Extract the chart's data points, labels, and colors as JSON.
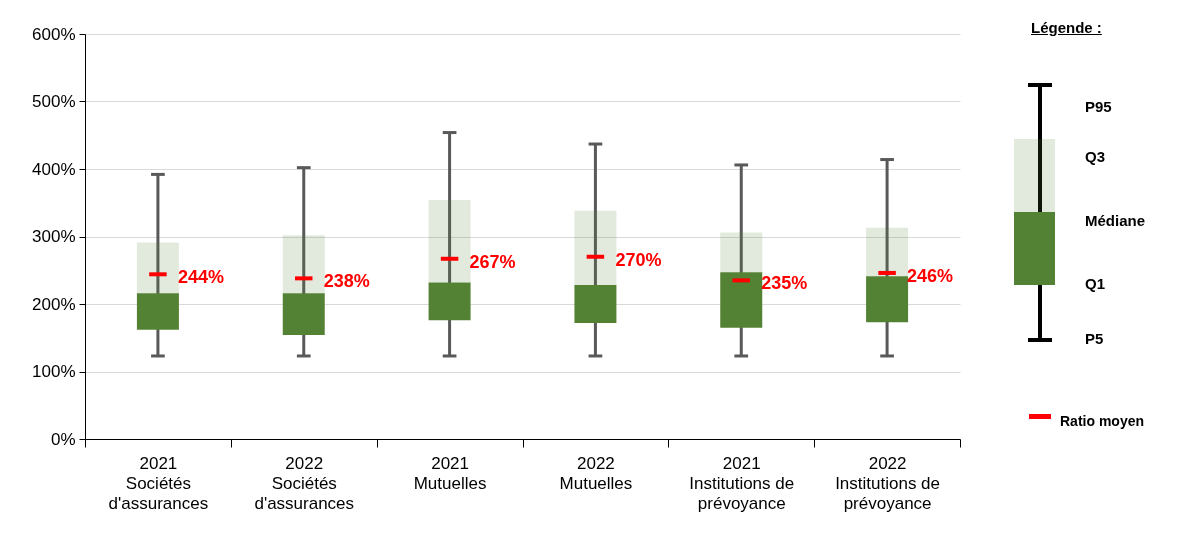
{
  "chart_data": {
    "type": "box",
    "categories": [
      "2021\nSociétés\nd'assurances",
      "2022\nSociétés\nd'assurances",
      "2021\nMutuelles",
      "2022\nMutuelles",
      "2021\nInstitutions de\nprévoyance",
      "2022\nInstitutions de\nprévoyance"
    ],
    "series": [
      {
        "color": "#548235",
        "boxes": [
          {
            "low": 123,
            "q1": 162,
            "median": 216,
            "q3": 291,
            "high": 392,
            "mean": 244
          },
          {
            "low": 123,
            "q1": 154,
            "median": 216,
            "q3": 302,
            "high": 402,
            "mean": 238
          },
          {
            "low": 123,
            "q1": 176,
            "median": 232,
            "q3": 354,
            "high": 454,
            "mean": 267
          },
          {
            "low": 123,
            "q1": 172,
            "median": 228,
            "q3": 338,
            "high": 437,
            "mean": 270
          },
          {
            "low": 123,
            "q1": 165,
            "median": 247,
            "q3": 306,
            "high": 406,
            "mean": 235
          },
          {
            "low": 123,
            "q1": 173,
            "median": 241,
            "q3": 313,
            "high": 414,
            "mean": 246
          }
        ],
        "value_labels": [
          "244%",
          "238%",
          "267%",
          "270%",
          "235%",
          "246%"
        ]
      }
    ],
    "ylim": [
      0,
      600
    ],
    "yticks": [
      {
        "value": 0,
        "label": "0%"
      },
      {
        "value": 100,
        "label": "100%"
      },
      {
        "value": 200,
        "label": "200%"
      },
      {
        "value": 300,
        "label": "300%"
      },
      {
        "value": 400,
        "label": "400%"
      },
      {
        "value": 500,
        "label": "500%"
      },
      {
        "value": 600,
        "label": "600%"
      }
    ],
    "grid": "y",
    "annotations": [
      "Légende :",
      "P95",
      "Q3",
      "Médiane",
      "Q1",
      "P5",
      "Ratio moyen"
    ]
  }
}
